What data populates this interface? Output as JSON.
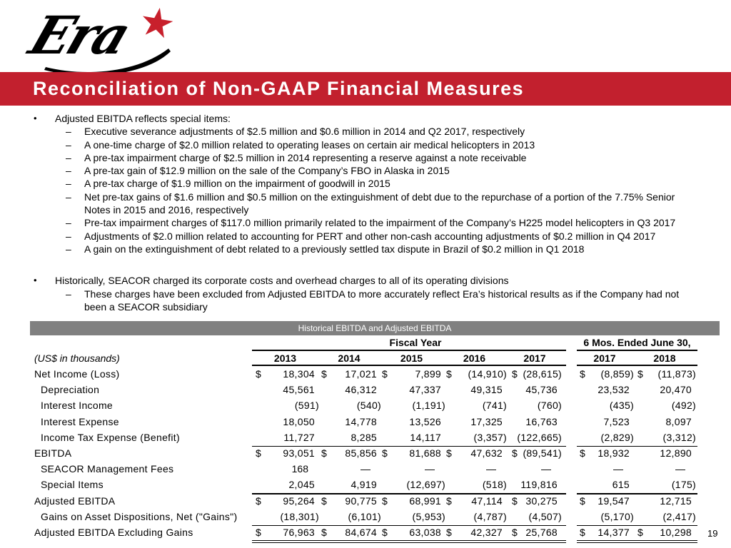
{
  "logo": {
    "text": "Era",
    "star_icon": "star",
    "star_color": "#c8202c"
  },
  "title": {
    "text": "Reconciliation of Non-GAAP Financial Measures",
    "bg_color": "#c2202e"
  },
  "bullet_sections": [
    {
      "lead": "Adjusted EBITDA reflects special items:",
      "subs": [
        "Executive severance adjustments of $2.5 million and $0.6 million in 2014 and Q2 2017, respectively",
        "A one-time charge of $2.0 million related to operating leases on certain air medical helicopters in 2013",
        "A pre-tax impairment charge of $2.5 million in 2014 representing a reserve against a note receivable",
        "A pre-tax gain of $12.9 million on the sale of the Company’s FBO in Alaska in 2015",
        "A pre-tax charge of $1.9 million on the impairment of goodwill in 2015",
        "Net pre-tax gains of $1.6 million and $0.5 million on the extinguishment of debt due to the repurchase of a portion of the 7.75% Senior Notes in 2015 and 2016, respectively",
        "Pre-tax impairment charges of $117.0 million primarily related to the impairment of the Company’s H225 model helicopters in Q3 2017",
        "Adjustments of $2.0 million related to accounting for PERT and other non-cash accounting adjustments of $0.2 million in Q4 2017",
        "A gain on the extinguishment of debt related to a previously settled tax dispute in Brazil of $0.2 million in Q1 2018"
      ]
    },
    {
      "lead": "Historically, SEACOR charged its corporate costs and overhead charges to all of its operating divisions",
      "subs": [
        "These charges have been excluded from Adjusted EBITDA to more accurately reflect Era’s historical results as if the Company had not been a SEACOR subsidiary"
      ]
    }
  ],
  "table": {
    "banner": "Historical EBITDA and Adjusted EBITDA",
    "units_note": "(US$ in thousands)",
    "group1_header": "Fiscal Year",
    "group2_header": "6 Mos. Ended June 30,",
    "group1_years": [
      "2013",
      "2014",
      "2015",
      "2016",
      "2017"
    ],
    "group2_years": [
      "2017",
      "2018"
    ],
    "rows": [
      {
        "label": "Net Income (Loss)",
        "indent": false,
        "cells": [
          "$ 18,304",
          "$ 17,021",
          "$ 7,899",
          "$ (14,910)",
          "$ (28,615)",
          "$ (8,859)",
          "$ (11,873)"
        ]
      },
      {
        "label": "Depreciation",
        "indent": true,
        "cells": [
          "45,561",
          "46,312",
          "47,337",
          "49,315",
          "45,736",
          "23,532",
          "20,470"
        ]
      },
      {
        "label": "Interest Income",
        "indent": true,
        "cells": [
          "(591)",
          "(540)",
          "(1,191)",
          "(741)",
          "(760)",
          "(435)",
          "(492)"
        ]
      },
      {
        "label": "Interest Expense",
        "indent": true,
        "cells": [
          "18,050",
          "14,778",
          "13,526",
          "17,325",
          "16,763",
          "7,523",
          "8,097"
        ]
      },
      {
        "label": "Income Tax Expense (Benefit)",
        "indent": true,
        "cells": [
          "11,727",
          "8,285",
          "14,117",
          "(3,357)",
          "(122,665)",
          "(2,829)",
          "(3,312)"
        ]
      },
      {
        "label": "EBITDA",
        "indent": false,
        "top_line": true,
        "cells": [
          "$ 93,051",
          "$ 85,856",
          "$ 81,688",
          "$ 47,632",
          "$ (89,541)",
          "$ 18,932",
          "12,890"
        ]
      },
      {
        "label": "SEACOR Management Fees",
        "indent": true,
        "padded": true,
        "cells": [
          "168",
          "—",
          "—",
          "—",
          "—",
          "—",
          "—"
        ]
      },
      {
        "label": "Special Items",
        "indent": true,
        "cells": [
          "2,045",
          "4,919",
          "(12,697)",
          "(518)",
          "119,816",
          "615",
          "(175)"
        ]
      },
      {
        "label": "Adjusted EBITDA",
        "indent": false,
        "top_line": true,
        "cells": [
          "$ 95,264",
          "$ 90,775",
          "$ 68,991",
          "$ 47,114",
          "$ 30,275",
          "$ 19,547",
          "12,715"
        ]
      },
      {
        "label": "Gains on Asset Dispositions, Net (\"Gains\")",
        "indent": true,
        "cells": [
          "(18,301)",
          "(6,101)",
          "(5,953)",
          "(4,787)",
          "(4,507)",
          "(5,170)",
          "(2,417)"
        ]
      },
      {
        "label": "Adjusted EBITDA Excluding Gains",
        "indent": false,
        "top_line": true,
        "double_bottom": true,
        "cells": [
          "$ 76,963",
          "$ 84,674",
          "$ 63,038",
          "$ 42,327",
          "$ 25,768",
          "$ 14,377",
          "$ 10,298"
        ]
      }
    ]
  },
  "page_number": "19"
}
